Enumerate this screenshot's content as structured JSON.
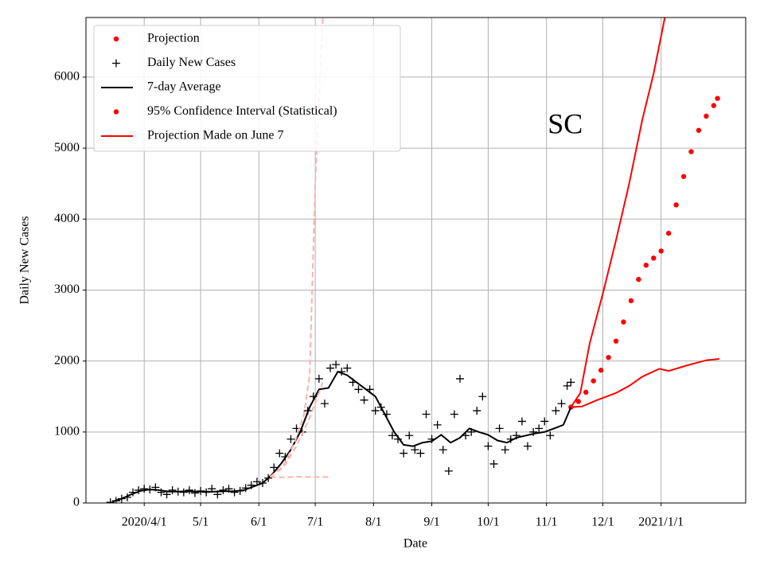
{
  "chart_data": {
    "type": "line",
    "annotation": "SC",
    "annotation_at": {
      "x": "2020-11-11",
      "y": 5300
    },
    "xlabel": "Date",
    "ylabel": "Daily New Cases",
    "xlim": [
      "2020-03-01",
      "2021-02-15"
    ],
    "ylim": [
      0,
      6840
    ],
    "yticks": [
      0,
      1000,
      2000,
      3000,
      4000,
      5000,
      6000
    ],
    "xticks": [
      {
        "value": "2020-04-01",
        "label": "2020/4/1"
      },
      {
        "value": "2020-05-01",
        "label": "5/1"
      },
      {
        "value": "2020-06-01",
        "label": "6/1"
      },
      {
        "value": "2020-07-01",
        "label": "7/1"
      },
      {
        "value": "2020-08-01",
        "label": "8/1"
      },
      {
        "value": "2020-09-01",
        "label": "9/1"
      },
      {
        "value": "2020-10-01",
        "label": "10/1"
      },
      {
        "value": "2020-11-01",
        "label": "11/1"
      },
      {
        "value": "2020-12-01",
        "label": "12/1"
      },
      {
        "value": "2021-01-01",
        "label": "2021/1/1"
      }
    ],
    "grid": true,
    "legend": "upper left",
    "series": [
      {
        "name": "Projection",
        "color": "#ff0000",
        "marker": "dot",
        "x": [
          "2020-11-14",
          "2020-11-18",
          "2020-11-22",
          "2020-11-26",
          "2020-11-30",
          "2020-12-04",
          "2020-12-08",
          "2020-12-12",
          "2020-12-16",
          "2020-12-20",
          "2020-12-24",
          "2020-12-28",
          "2021-01-01",
          "2021-01-05",
          "2021-01-09",
          "2021-01-13",
          "2021-01-17",
          "2021-01-21",
          "2021-01-25",
          "2021-01-29",
          "2021-01-31"
        ],
        "values": [
          1350,
          1430,
          1560,
          1720,
          1870,
          2050,
          2280,
          2550,
          2850,
          3150,
          3350,
          3450,
          3550,
          3800,
          4200,
          4600,
          4950,
          5250,
          5450,
          5600,
          5700
        ]
      },
      {
        "name": "Daily New Cases",
        "color": "#000000",
        "marker": "plus",
        "x": [
          "2020-03-14",
          "2020-03-17",
          "2020-03-20",
          "2020-03-23",
          "2020-03-26",
          "2020-03-29",
          "2020-04-01",
          "2020-04-04",
          "2020-04-07",
          "2020-04-10",
          "2020-04-13",
          "2020-04-16",
          "2020-04-19",
          "2020-04-22",
          "2020-04-25",
          "2020-04-28",
          "2020-05-01",
          "2020-05-04",
          "2020-05-07",
          "2020-05-10",
          "2020-05-13",
          "2020-05-16",
          "2020-05-19",
          "2020-05-22",
          "2020-05-25",
          "2020-05-28",
          "2020-05-31",
          "2020-06-03",
          "2020-06-06",
          "2020-06-09",
          "2020-06-12",
          "2020-06-15",
          "2020-06-18",
          "2020-06-21",
          "2020-06-24",
          "2020-06-27",
          "2020-06-30",
          "2020-07-03",
          "2020-07-06",
          "2020-07-09",
          "2020-07-12",
          "2020-07-15",
          "2020-07-18",
          "2020-07-21",
          "2020-07-24",
          "2020-07-27",
          "2020-07-30",
          "2020-08-02",
          "2020-08-05",
          "2020-08-08",
          "2020-08-11",
          "2020-08-14",
          "2020-08-17",
          "2020-08-20",
          "2020-08-23",
          "2020-08-26",
          "2020-08-29",
          "2020-09-01",
          "2020-09-04",
          "2020-09-07",
          "2020-09-10",
          "2020-09-13",
          "2020-09-16",
          "2020-09-19",
          "2020-09-22",
          "2020-09-25",
          "2020-09-28",
          "2020-10-01",
          "2020-10-04",
          "2020-10-07",
          "2020-10-10",
          "2020-10-13",
          "2020-10-16",
          "2020-10-19",
          "2020-10-22",
          "2020-10-25",
          "2020-10-28",
          "2020-10-31",
          "2020-11-03",
          "2020-11-06",
          "2020-11-09",
          "2020-11-12",
          "2020-11-14"
        ],
        "values": [
          10,
          30,
          60,
          80,
          150,
          180,
          200,
          190,
          220,
          150,
          120,
          180,
          160,
          150,
          180,
          140,
          170,
          150,
          200,
          120,
          180,
          200,
          150,
          170,
          210,
          250,
          300,
          280,
          350,
          500,
          700,
          650,
          900,
          1050,
          1000,
          1300,
          1500,
          1750,
          1400,
          1900,
          1950,
          1850,
          1900,
          1700,
          1600,
          1450,
          1600,
          1300,
          1350,
          1250,
          950,
          900,
          700,
          950,
          750,
          700,
          1250,
          900,
          1100,
          750,
          450,
          1250,
          1750,
          950,
          1000,
          1300,
          1500,
          800,
          550,
          1050,
          750,
          900,
          950,
          1150,
          800,
          1000,
          1050,
          1150,
          950,
          1300,
          1400,
          1650,
          1700
        ]
      },
      {
        "name": "7-day Average",
        "color": "#000000",
        "marker": "line",
        "x": [
          "2020-03-15",
          "2020-03-20",
          "2020-03-25",
          "2020-03-30",
          "2020-04-04",
          "2020-04-09",
          "2020-04-14",
          "2020-04-19",
          "2020-04-24",
          "2020-04-29",
          "2020-05-04",
          "2020-05-09",
          "2020-05-14",
          "2020-05-19",
          "2020-05-24",
          "2020-05-29",
          "2020-06-03",
          "2020-06-08",
          "2020-06-13",
          "2020-06-18",
          "2020-06-23",
          "2020-06-28",
          "2020-07-03",
          "2020-07-08",
          "2020-07-13",
          "2020-07-18",
          "2020-07-23",
          "2020-07-28",
          "2020-08-02",
          "2020-08-07",
          "2020-08-12",
          "2020-08-17",
          "2020-08-22",
          "2020-08-27",
          "2020-09-01",
          "2020-09-06",
          "2020-09-11",
          "2020-09-16",
          "2020-09-21",
          "2020-09-26",
          "2020-10-01",
          "2020-10-06",
          "2020-10-11",
          "2020-10-16",
          "2020-10-21",
          "2020-10-26",
          "2020-10-31",
          "2020-11-05",
          "2020-11-10",
          "2020-11-14"
        ],
        "values": [
          20,
          60,
          120,
          170,
          190,
          180,
          160,
          160,
          165,
          160,
          160,
          160,
          165,
          165,
          180,
          230,
          280,
          400,
          560,
          750,
          1000,
          1350,
          1600,
          1620,
          1850,
          1800,
          1700,
          1600,
          1500,
          1250,
          1000,
          820,
          800,
          850,
          870,
          960,
          850,
          920,
          1050,
          1000,
          960,
          880,
          850,
          920,
          950,
          980,
          1000,
          1050,
          1100,
          1350
        ]
      },
      {
        "name": "95% Confidence Interval (Statistical)",
        "color": "#ff0000",
        "marker": "dot",
        "line_color": "#ff0000",
        "line_style": "solid",
        "lines": [
          {
            "x": [
              "2020-11-14",
              "2020-11-19",
              "2020-11-24",
              "2020-12-01",
              "2020-12-08",
              "2020-12-15",
              "2020-12-22",
              "2020-12-28",
              "2021-01-03"
            ],
            "values": [
              1350,
              1550,
              2250,
              2950,
              3700,
              4500,
              5400,
              6050,
              6840
            ]
          },
          {
            "x": [
              "2020-11-14",
              "2020-11-20",
              "2020-11-28",
              "2020-12-08",
              "2020-12-15",
              "2020-12-22",
              "2020-12-31",
              "2021-01-05",
              "2021-01-15",
              "2021-01-25",
              "2021-02-01"
            ],
            "values": [
              1350,
              1360,
              1450,
              1550,
              1650,
              1780,
              1890,
              1860,
              1940,
              2010,
              2030
            ]
          }
        ]
      },
      {
        "name": "Projection Made on June 7",
        "color": "#ff0000",
        "marker": "line",
        "line_color": "#ffb0b0",
        "line_style": "dashed",
        "lines": [
          {
            "x": [
              "2020-06-07",
              "2020-06-14",
              "2020-06-20",
              "2020-06-25",
              "2020-06-28",
              "2020-07-01",
              "2020-07-05"
            ],
            "values": [
              370,
              520,
              850,
              1250,
              1800,
              4500,
              6840
            ]
          },
          {
            "x": [
              "2020-06-07",
              "2020-06-14",
              "2020-06-21",
              "2020-06-28",
              "2020-07-05"
            ],
            "values": [
              370,
              500,
              800,
              1200,
              1700
            ]
          },
          {
            "x": [
              "2020-06-07",
              "2020-06-14",
              "2020-06-21",
              "2020-06-28",
              "2020-07-08"
            ],
            "values": [
              370,
              360,
              370,
              365,
              365
            ]
          }
        ]
      }
    ]
  }
}
